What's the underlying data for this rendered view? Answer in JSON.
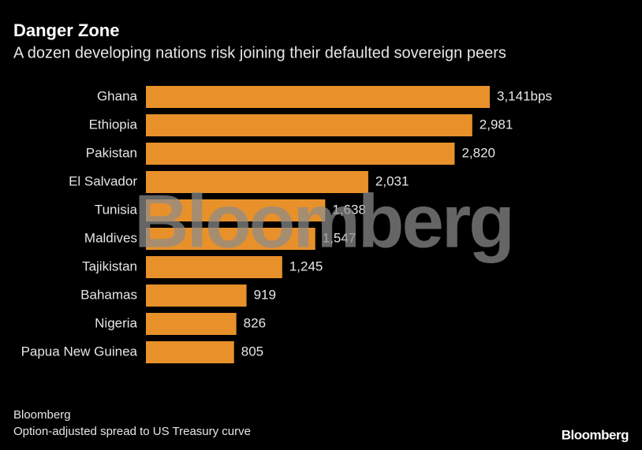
{
  "chart_data": {
    "type": "bar",
    "orientation": "horizontal",
    "title": "Danger Zone",
    "subtitle": "A dozen developing nations risk joining their defaulted sovereign peers",
    "categories": [
      "Ghana",
      "Ethiopia",
      "Pakistan",
      "El Salvador",
      "Tunisia",
      "Maldives",
      "Tajikistan",
      "Bahamas",
      "Nigeria",
      "Papua New Guinea"
    ],
    "values": [
      3141,
      2981,
      2820,
      2031,
      1638,
      1547,
      1245,
      919,
      826,
      805
    ],
    "value_labels": [
      "3,141bps",
      "2,981",
      "2,820",
      "2,031",
      "1,638",
      "1,547",
      "1,245",
      "919",
      "826",
      "805"
    ],
    "color": "#e8912a",
    "source": "Bloomberg",
    "note": "Option-adjusted spread to US Treasury curve",
    "watermark": "Bloomberg",
    "logo": "Bloomberg"
  }
}
